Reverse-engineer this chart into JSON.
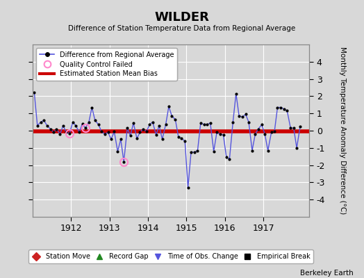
{
  "title": "WILDER",
  "subtitle": "Difference of Station Temperature Data from Regional Average",
  "ylabel": "Monthly Temperature Anomaly Difference (°C)",
  "credit": "Berkeley Earth",
  "background_color": "#d8d8d8",
  "plot_bg_color": "#d8d8d8",
  "bias_value": -0.05,
  "xlim_start": 1911.0,
  "xlim_end": 1918.2,
  "ylim": [
    -5,
    5
  ],
  "yticks": [
    -4,
    -3,
    -2,
    -1,
    0,
    1,
    2,
    3,
    4
  ],
  "xticks": [
    1912,
    1913,
    1914,
    1915,
    1916,
    1917
  ],
  "line_color": "#5555dd",
  "dot_color": "#000000",
  "bias_color": "#cc0000",
  "qc_color": "#ff88cc",
  "times": [
    1911.04,
    1911.12,
    1911.21,
    1911.29,
    1911.37,
    1911.46,
    1911.54,
    1911.62,
    1911.71,
    1911.79,
    1911.87,
    1911.96,
    1912.04,
    1912.12,
    1912.21,
    1912.29,
    1912.37,
    1912.46,
    1912.54,
    1912.62,
    1912.71,
    1912.79,
    1912.87,
    1912.96,
    1913.04,
    1913.12,
    1913.21,
    1913.29,
    1913.37,
    1913.46,
    1913.54,
    1913.62,
    1913.71,
    1913.79,
    1913.87,
    1913.96,
    1914.04,
    1914.12,
    1914.21,
    1914.29,
    1914.37,
    1914.46,
    1914.54,
    1914.62,
    1914.71,
    1914.79,
    1914.87,
    1914.96,
    1915.04,
    1915.12,
    1915.21,
    1915.29,
    1915.37,
    1915.46,
    1915.54,
    1915.62,
    1915.71,
    1915.79,
    1915.87,
    1915.96,
    1916.04,
    1916.12,
    1916.21,
    1916.29,
    1916.37,
    1916.46,
    1916.54,
    1916.62,
    1916.71,
    1916.79,
    1916.87,
    1916.96,
    1917.04,
    1917.12,
    1917.21,
    1917.29,
    1917.37,
    1917.46,
    1917.54,
    1917.62,
    1917.71,
    1917.79,
    1917.87,
    1917.96
  ],
  "values": [
    2.2,
    0.3,
    0.5,
    0.6,
    0.3,
    0.1,
    -0.1,
    0.1,
    -0.2,
    0.3,
    -0.1,
    -0.15,
    0.5,
    0.3,
    -0.1,
    0.4,
    0.15,
    0.5,
    1.35,
    0.6,
    0.35,
    -0.05,
    -0.2,
    -0.1,
    -0.5,
    -0.05,
    -1.2,
    -0.5,
    -1.8,
    0.15,
    -0.3,
    0.45,
    -0.45,
    -0.1,
    0.1,
    -0.05,
    0.35,
    0.5,
    -0.25,
    0.3,
    -0.5,
    0.35,
    1.4,
    0.85,
    0.65,
    -0.35,
    -0.45,
    -0.6,
    -3.3,
    -1.25,
    -1.25,
    -1.15,
    0.45,
    0.35,
    0.35,
    0.45,
    -1.2,
    -0.1,
    -0.2,
    -0.25,
    -1.55,
    -1.65,
    0.5,
    2.15,
    0.85,
    0.8,
    0.95,
    0.5,
    -1.15,
    -0.2,
    0.1,
    0.35,
    -0.2,
    -1.15,
    -0.1,
    -0.05,
    1.35,
    1.35,
    1.25,
    1.15,
    0.15,
    0.15,
    -1.0,
    0.25
  ],
  "qc_failed_times": [
    1911.96,
    1912.37,
    1913.37
  ],
  "qc_failed_values": [
    -0.15,
    0.15,
    -1.8
  ]
}
